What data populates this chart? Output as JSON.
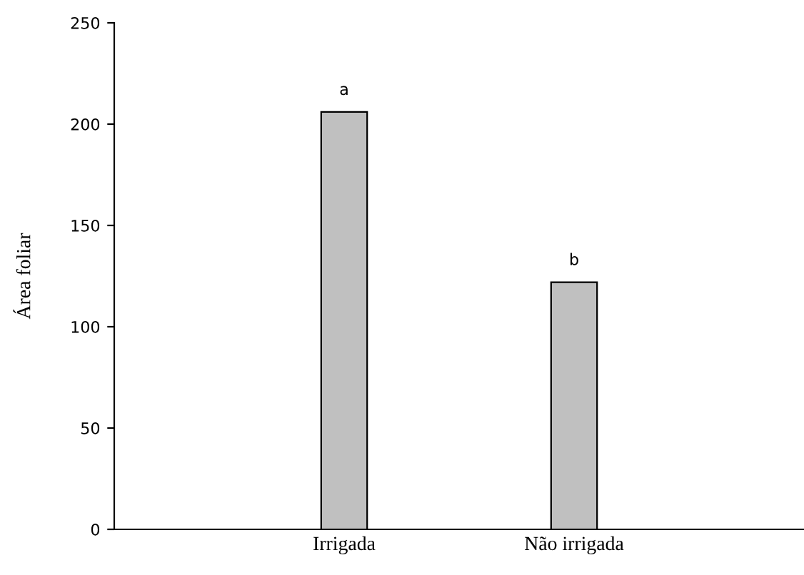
{
  "chart_data": {
    "type": "bar",
    "ylabel": "Área foliar",
    "categories": [
      "Irrigada",
      "Não irrigada"
    ],
    "values": [
      206,
      122
    ],
    "color": "#c0c0c0",
    "ylim": [
      0,
      250
    ],
    "yticks": [
      0,
      50,
      100,
      150,
      200,
      250
    ],
    "grid": false,
    "annotations": [
      {
        "text": "a",
        "x": "Irrigada",
        "y": 206
      },
      {
        "text": "b",
        "x": "Não irrigada",
        "y": 122
      }
    ]
  }
}
